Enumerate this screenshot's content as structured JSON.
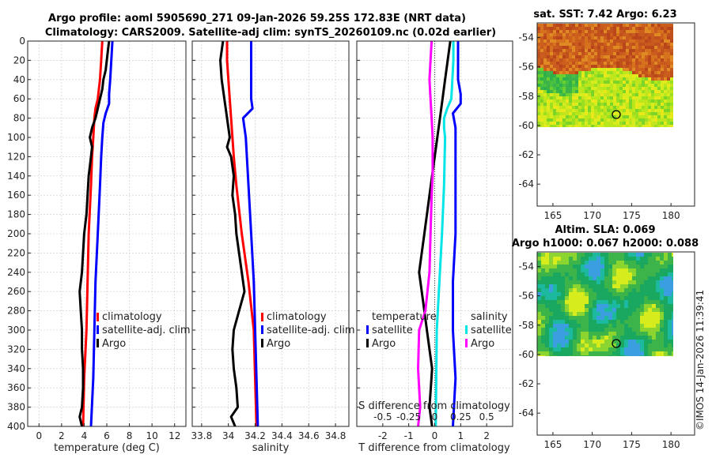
{
  "title": {
    "line1": "Argo profile: aoml 5905690_271 09-Jan-2026 59.25S 172.83E (NRT data)",
    "line2": "Climatology: CARS2009. Satellite-adj clim: synTS_20260109.nc (0.02d earlier)"
  },
  "colors": {
    "climatology": "#ff0000",
    "satellite": "#0000ff",
    "argo": "#000000",
    "sal_satellite": "#00e5e5",
    "sal_argo": "#ff00ff"
  },
  "footer": "©IMOS 14-Jan-2026 11:39:41",
  "chart_data": [
    {
      "id": "temperature-profile",
      "type": "line",
      "xlabel": "temperature (deg C)",
      "xlim": [
        -1,
        13
      ],
      "ylim": [
        400,
        0
      ],
      "xticks": [
        0,
        2,
        4,
        6,
        8,
        10,
        12
      ],
      "yticks": [
        0,
        20,
        40,
        60,
        80,
        100,
        120,
        140,
        160,
        180,
        200,
        220,
        240,
        260,
        280,
        300,
        320,
        340,
        360,
        380,
        400
      ],
      "grid": true,
      "legend_position": "lower-right",
      "series": [
        {
          "name": "climatology",
          "color": "#ff0000",
          "depth": [
            0,
            20,
            40,
            60,
            70,
            80,
            100,
            120,
            150,
            200,
            250,
            300,
            350,
            400
          ],
          "values": [
            5.6,
            5.5,
            5.4,
            5.2,
            5.0,
            4.9,
            4.8,
            4.7,
            4.6,
            4.4,
            4.3,
            4.2,
            4.0,
            3.9
          ]
        },
        {
          "name": "satellite-adj. clim",
          "color": "#0000ff",
          "depth": [
            0,
            20,
            40,
            55,
            65,
            75,
            85,
            100,
            120,
            150,
            200,
            250,
            300,
            350,
            400
          ],
          "values": [
            6.5,
            6.4,
            6.3,
            6.2,
            6.2,
            5.9,
            5.7,
            5.6,
            5.5,
            5.4,
            5.2,
            5.0,
            4.9,
            4.8,
            4.6
          ]
        },
        {
          "name": "Argo",
          "color": "#000000",
          "depth": [
            0,
            10,
            20,
            30,
            40,
            50,
            60,
            70,
            80,
            90,
            100,
            110,
            120,
            130,
            140,
            160,
            180,
            200,
            220,
            240,
            260,
            280,
            300,
            320,
            340,
            360,
            380,
            390,
            400
          ],
          "values": [
            6.2,
            6.1,
            6.0,
            5.9,
            5.7,
            5.6,
            5.4,
            5.2,
            5.0,
            4.7,
            4.5,
            4.7,
            4.6,
            4.5,
            4.4,
            4.3,
            4.2,
            4.0,
            3.9,
            3.8,
            3.6,
            3.7,
            3.8,
            3.8,
            3.9,
            3.9,
            3.8,
            3.6,
            3.8
          ]
        }
      ]
    },
    {
      "id": "salinity-profile",
      "type": "line",
      "xlabel": "salinity",
      "xlim": [
        33.73,
        34.9
      ],
      "ylim": [
        400,
        0
      ],
      "xticks": [
        33.8,
        34.0,
        34.2,
        34.4,
        34.6,
        34.8
      ],
      "xticklabels": [
        "33.8",
        "34",
        "34.2",
        "34.4",
        "34.6",
        "34.8"
      ],
      "grid": true,
      "legend_position": "lower-right",
      "series": [
        {
          "name": "climatology",
          "color": "#ff0000",
          "depth": [
            0,
            20,
            40,
            60,
            80,
            100,
            120,
            150,
            200,
            250,
            300,
            350,
            400
          ],
          "values": [
            33.99,
            33.99,
            34.0,
            34.01,
            34.02,
            34.03,
            34.04,
            34.06,
            34.1,
            34.15,
            34.19,
            34.2,
            34.21
          ]
        },
        {
          "name": "satellite-adj. clim",
          "color": "#0000ff",
          "depth": [
            0,
            20,
            40,
            60,
            70,
            80,
            90,
            100,
            150,
            200,
            250,
            300,
            350,
            400
          ],
          "values": [
            34.17,
            34.17,
            34.17,
            34.17,
            34.18,
            34.11,
            34.12,
            34.13,
            34.15,
            34.17,
            34.19,
            34.2,
            34.21,
            34.22
          ]
        },
        {
          "name": "Argo",
          "color": "#000000",
          "depth": [
            0,
            10,
            20,
            40,
            60,
            80,
            100,
            110,
            120,
            140,
            160,
            180,
            200,
            220,
            240,
            260,
            280,
            300,
            320,
            340,
            360,
            380,
            390,
            400
          ],
          "values": [
            33.96,
            33.95,
            33.94,
            33.95,
            33.97,
            33.99,
            34.01,
            33.99,
            34.02,
            34.04,
            34.03,
            34.05,
            34.06,
            34.08,
            34.1,
            34.12,
            34.08,
            34.04,
            34.03,
            34.04,
            34.06,
            34.07,
            34.02,
            34.05
          ]
        }
      ]
    },
    {
      "id": "difference-profile",
      "type": "line",
      "xlabel": "T difference from climatology",
      "xlabel_top": "S difference from climatology",
      "xlim": [
        -3,
        3
      ],
      "ylim": [
        400,
        0
      ],
      "xticks": [
        -2,
        -1,
        0,
        1,
        2
      ],
      "sal_xticks": [
        -0.5,
        -0.25,
        0,
        0.25,
        0.5
      ],
      "sal_xticklabels": [
        "-0.5",
        "-0.25",
        "0",
        "0.25",
        "0.5"
      ],
      "grid": true,
      "legend_groups": [
        {
          "title": "temperature",
          "entries": [
            {
              "label": "satellite",
              "color": "#0000ff"
            },
            {
              "label": "Argo",
              "color": "#000000"
            }
          ]
        },
        {
          "title": "salinity",
          "entries": [
            {
              "label": "satellite",
              "color": "#00e5e5"
            },
            {
              "label": "Argo",
              "color": "#ff00ff"
            }
          ]
        }
      ],
      "series": [
        {
          "name": "T satellite",
          "color": "#0000ff",
          "depth": [
            0,
            20,
            40,
            55,
            65,
            75,
            90,
            100,
            150,
            200,
            250,
            300,
            350,
            400
          ],
          "values": [
            0.9,
            0.9,
            0.9,
            1.0,
            1.0,
            0.7,
            0.8,
            0.8,
            0.8,
            0.8,
            0.7,
            0.7,
            0.8,
            0.7
          ]
        },
        {
          "name": "T Argo",
          "color": "#000000",
          "depth": [
            0,
            20,
            40,
            60,
            80,
            100,
            120,
            140,
            160,
            200,
            240,
            280,
            300,
            340,
            380,
            400
          ],
          "values": [
            0.6,
            0.5,
            0.4,
            0.3,
            0.2,
            0.1,
            0.0,
            -0.1,
            -0.2,
            -0.4,
            -0.6,
            -0.4,
            -0.3,
            -0.1,
            -0.2,
            -0.1
          ]
        },
        {
          "name": "S satellite",
          "color": "#00e5e5",
          "depth": [
            0,
            20,
            40,
            60,
            70,
            80,
            90,
            100,
            150,
            200,
            300,
            400
          ],
          "values": [
            0.18,
            0.18,
            0.17,
            0.16,
            0.12,
            0.09,
            0.09,
            0.1,
            0.09,
            0.07,
            0.02,
            0.01
          ]
        },
        {
          "name": "S Argo",
          "color": "#ff00ff",
          "depth": [
            0,
            20,
            40,
            60,
            80,
            100,
            120,
            140,
            160,
            200,
            240,
            280,
            300,
            340,
            380,
            400
          ],
          "values": [
            -0.03,
            -0.04,
            -0.05,
            -0.04,
            -0.03,
            -0.02,
            -0.02,
            -0.02,
            -0.03,
            -0.04,
            -0.05,
            -0.09,
            -0.15,
            -0.16,
            -0.14,
            -0.16
          ]
        }
      ]
    },
    {
      "id": "sst-map",
      "type": "heatmap",
      "title": "sat. SST: 7.42 Argo: 6.23",
      "xlim": [
        163,
        183
      ],
      "ylim": [
        -65.5,
        -53
      ],
      "xticks": [
        165,
        170,
        175,
        180
      ],
      "yticks": [
        -54,
        -56,
        -58,
        -60,
        -62,
        -64
      ],
      "data_extent": {
        "lon": [
          163,
          180.2
        ],
        "lat": [
          -60.2,
          -53.5
        ]
      },
      "argo_position": {
        "lon": 172.83,
        "lat": -59.25
      }
    },
    {
      "id": "sla-map",
      "type": "heatmap",
      "title_line1": "Altim. SLA: 0.069",
      "title_line2": "Argo h1000: 0.067 h2000: 0.088",
      "xlim": [
        163,
        183
      ],
      "ylim": [
        -65.5,
        -53
      ],
      "xticks": [
        165,
        170,
        175,
        180
      ],
      "yticks": [
        -54,
        -56,
        -58,
        -60,
        -62,
        -64
      ],
      "data_extent": {
        "lon": [
          163,
          180.2
        ],
        "lat": [
          -60.2,
          -53.5
        ]
      },
      "argo_position": {
        "lon": 172.83,
        "lat": -59.25
      }
    }
  ]
}
